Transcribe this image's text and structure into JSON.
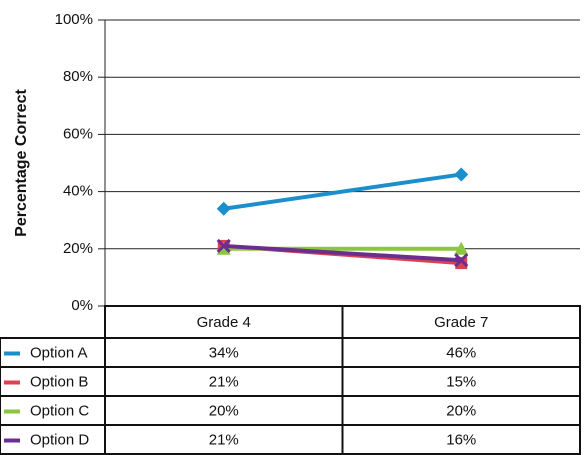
{
  "chart_data": {
    "type": "line",
    "ylabel": "Percentage Correct",
    "categories": [
      "Grade 4",
      "Grade 7"
    ],
    "series": [
      {
        "name": "Option A",
        "color": "#1b8fcb",
        "marker": "diamond",
        "values": [
          34,
          46
        ],
        "value_labels": [
          "34%",
          "46%"
        ]
      },
      {
        "name": "Option B",
        "color": "#d8434f",
        "marker": "square",
        "values": [
          21,
          15
        ],
        "value_labels": [
          "21%",
          "15%"
        ]
      },
      {
        "name": "Option C",
        "color": "#8cc63f",
        "marker": "triangle",
        "values": [
          20,
          20
        ],
        "value_labels": [
          "20%",
          "20%"
        ]
      },
      {
        "name": "Option D",
        "color": "#6b2d8f",
        "marker": "x",
        "values": [
          21,
          16
        ],
        "value_labels": [
          "21%",
          "16%"
        ]
      }
    ],
    "ylim": [
      0,
      100
    ],
    "yticks": [
      {
        "value": 0,
        "label": "0%"
      },
      {
        "value": 20,
        "label": "20%"
      },
      {
        "value": 40,
        "label": "40%"
      },
      {
        "value": 60,
        "label": "60%"
      },
      {
        "value": 80,
        "label": "80%"
      },
      {
        "value": 100,
        "label": "100%"
      }
    ],
    "grid": true
  }
}
